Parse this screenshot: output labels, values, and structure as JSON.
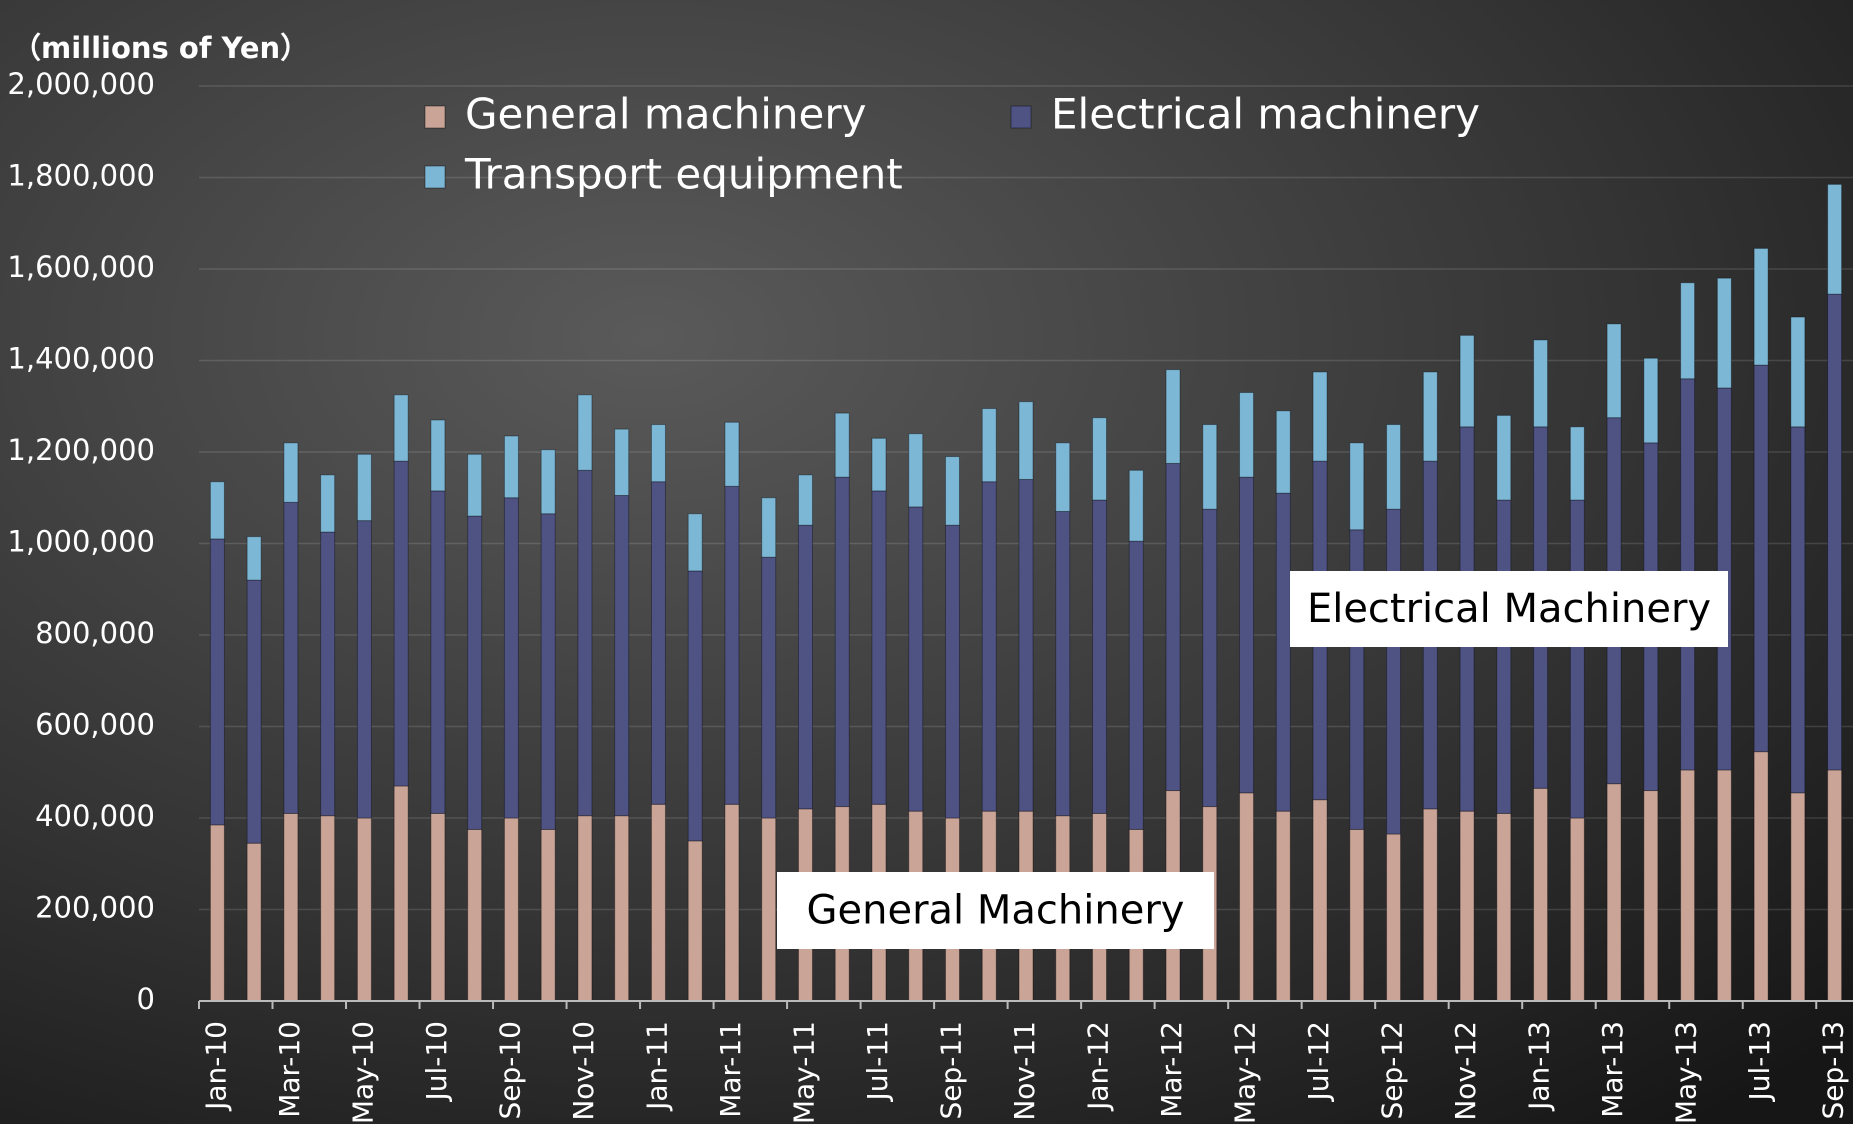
{
  "chart_data": {
    "type": "stacked-bar",
    "y_label": "（millions of Yen）",
    "categories": [
      "Jan-10",
      null,
      "Mar-10",
      null,
      "May-10",
      null,
      "Jul-10",
      null,
      "Sep-10",
      null,
      "Nov-10",
      null,
      "Jan-11",
      null,
      "Mar-11",
      null,
      "May-11",
      null,
      "Jul-11",
      null,
      "Sep-11",
      null,
      "Nov-11",
      null,
      "Jan-12",
      null,
      "Mar-12",
      null,
      "May-12",
      null,
      "Jul-12",
      null,
      "Sep-12",
      null,
      "Nov-12",
      null,
      "Jan-13",
      null,
      "Mar-13",
      null,
      "May-13",
      null,
      "Jul-13",
      null,
      "Sep-13"
    ],
    "series": [
      {
        "name": "General machinery",
        "color": "#c9a497",
        "values": [
          385000,
          345000,
          410000,
          405000,
          400000,
          470000,
          410000,
          375000,
          400000,
          375000,
          405000,
          405000,
          430000,
          350000,
          430000,
          400000,
          420000,
          425000,
          430000,
          415000,
          400000,
          415000,
          415000,
          405000,
          410000,
          375000,
          460000,
          425000,
          455000,
          415000,
          440000,
          375000,
          365000,
          420000,
          415000,
          410000,
          465000,
          400000,
          475000,
          460000,
          505000,
          505000,
          545000,
          455000,
          505000
        ]
      },
      {
        "name": "Electrical machinery",
        "color": "#4f5383",
        "values": [
          625000,
          575000,
          680000,
          620000,
          650000,
          710000,
          705000,
          685000,
          700000,
          690000,
          755000,
          700000,
          705000,
          590000,
          695000,
          570000,
          620000,
          720000,
          685000,
          665000,
          640000,
          720000,
          725000,
          665000,
          685000,
          630000,
          715000,
          650000,
          690000,
          695000,
          740000,
          655000,
          710000,
          760000,
          840000,
          685000,
          790000,
          695000,
          800000,
          760000,
          855000,
          835000,
          845000,
          800000,
          1040000
        ]
      },
      {
        "name": "Transport equipment",
        "color": "#7db7d6",
        "values": [
          125000,
          95000,
          130000,
          125000,
          145000,
          145000,
          155000,
          135000,
          135000,
          140000,
          165000,
          145000,
          125000,
          125000,
          140000,
          130000,
          110000,
          140000,
          115000,
          160000,
          150000,
          160000,
          170000,
          150000,
          180000,
          155000,
          205000,
          185000,
          185000,
          180000,
          195000,
          190000,
          185000,
          195000,
          200000,
          185000,
          190000,
          160000,
          205000,
          185000,
          210000,
          240000,
          255000,
          240000,
          240000
        ]
      }
    ],
    "ylim": [
      0,
      2000000
    ],
    "yticks": [
      0,
      {
        "value": 200000,
        "label": "200,000"
      },
      {
        "value": 400000,
        "label": "400,000"
      },
      {
        "value": 600000,
        "label": "600,000"
      },
      {
        "value": 800000,
        "label": "800,000"
      },
      {
        "value": 1000000,
        "label": "1,000,000"
      },
      {
        "value": 1200000,
        "label": "1,200,000"
      },
      {
        "value": 1400000,
        "label": "1,400,000"
      },
      {
        "value": 1600000,
        "label": "1,600,000"
      },
      {
        "value": 1800000,
        "label": "1,800,000"
      },
      {
        "value": 2000000,
        "label": "2,000,000"
      }
    ],
    "grid": true,
    "legend": "top",
    "annotations": [
      "Electrical Machinery",
      "General Machinery"
    ]
  }
}
